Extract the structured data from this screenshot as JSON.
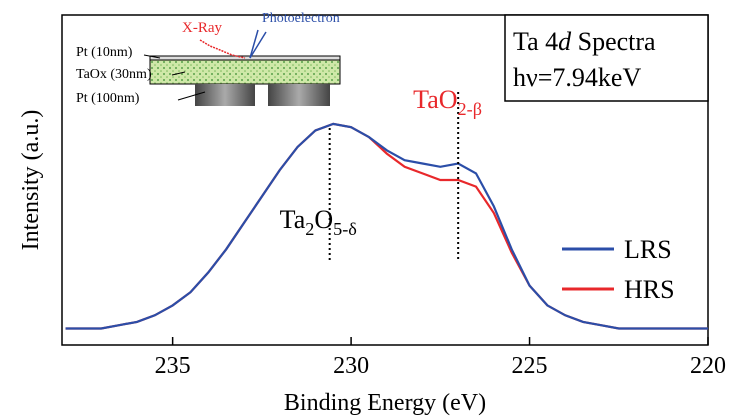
{
  "chart_data": {
    "type": "line",
    "x_label": "Binding Energy (eV)",
    "y_label": "Intensity (a.u.)",
    "xlim": [
      238.1,
      220
    ],
    "xticks": [
      235,
      230,
      225,
      220
    ],
    "ylim": [
      0,
      1
    ],
    "x": [
      238,
      237.5,
      237,
      236.5,
      236,
      235.5,
      235,
      234.5,
      234,
      233.5,
      233,
      232.5,
      232,
      231.5,
      231,
      230.5,
      230,
      229.5,
      229,
      228.5,
      228,
      227.5,
      227,
      226.5,
      226,
      225.5,
      225,
      224.5,
      224,
      223.5,
      223,
      222.5,
      222,
      221.5,
      221,
      220.5,
      220
    ],
    "series": [
      {
        "name": "LRS",
        "color": "#2b4ea8",
        "values": [
          0.05,
          0.05,
          0.05,
          0.06,
          0.07,
          0.09,
          0.12,
          0.16,
          0.22,
          0.29,
          0.37,
          0.45,
          0.53,
          0.6,
          0.65,
          0.67,
          0.66,
          0.63,
          0.59,
          0.56,
          0.55,
          0.54,
          0.55,
          0.52,
          0.42,
          0.29,
          0.18,
          0.12,
          0.09,
          0.07,
          0.06,
          0.05,
          0.05,
          0.05,
          0.05,
          0.05,
          0.05
        ]
      },
      {
        "name": "HRS",
        "color": "#e8282b",
        "values": [
          0.05,
          0.05,
          0.05,
          0.06,
          0.07,
          0.09,
          0.12,
          0.16,
          0.22,
          0.29,
          0.37,
          0.45,
          0.53,
          0.6,
          0.65,
          0.67,
          0.66,
          0.63,
          0.58,
          0.54,
          0.52,
          0.5,
          0.5,
          0.48,
          0.4,
          0.28,
          0.18,
          0.12,
          0.09,
          0.07,
          0.06,
          0.05,
          0.05,
          0.05,
          0.05,
          0.05,
          0.05
        ]
      }
    ],
    "annotations": [
      {
        "x": 230.6,
        "color": "#000000",
        "segments": [
          {
            "text": "Ta"
          },
          {
            "text": "2",
            "sub": true
          },
          {
            "text": "O"
          },
          {
            "text": "5-δ",
            "sub": true
          }
        ]
      },
      {
        "x": 227,
        "color": "#e8282b",
        "segments": [
          {
            "text": "TaO"
          },
          {
            "text": "2-β",
            "sub": true
          }
        ]
      }
    ],
    "info_box": [
      [
        {
          "text": "Ta 4"
        },
        {
          "text": "d",
          "italic": true
        },
        {
          "text": " Spectra"
        }
      ],
      [
        {
          "text": "hν=7.94keV"
        }
      ]
    ],
    "inset": {
      "xray": "X-Ray",
      "photoelectron": "Photoelectron",
      "layers": [
        "Pt    (10nm)",
        "TaOx (30nm)",
        "Pt    (100nm)"
      ]
    }
  }
}
